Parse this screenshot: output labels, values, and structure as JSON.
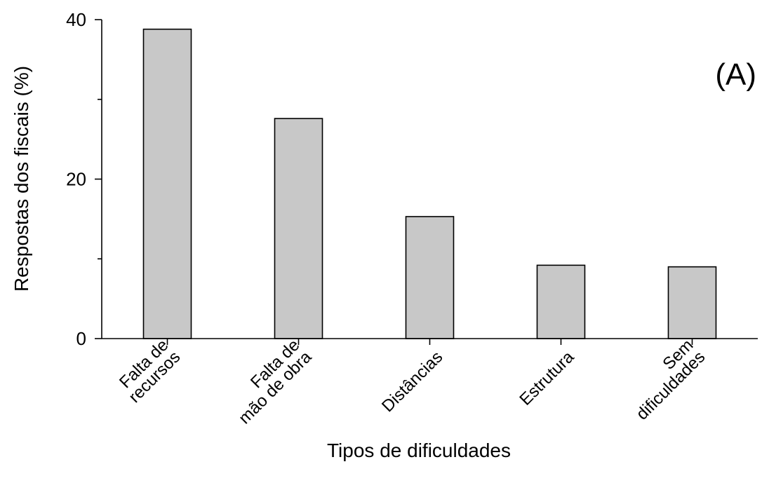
{
  "chart_data": {
    "type": "bar",
    "title": "",
    "panel_label": "(A)",
    "xlabel": "Tipos de dificuldades",
    "ylabel": "Respostas dos fiscais (%)",
    "categories": [
      [
        "Falta de",
        "recursos"
      ],
      [
        "Falta de",
        "mão de obra"
      ],
      [
        "Distâncias"
      ],
      [
        "Estrutura"
      ],
      [
        "Sem",
        "dificuldades"
      ]
    ],
    "values": [
      38.8,
      27.6,
      15.3,
      9.2,
      9.0
    ],
    "ylim": [
      0,
      40
    ],
    "yticks_major": [
      0,
      20,
      40
    ],
    "yticks_minor": [
      10,
      30
    ],
    "bar_color": "#c8c8c8",
    "grid": false,
    "legend": "none"
  }
}
